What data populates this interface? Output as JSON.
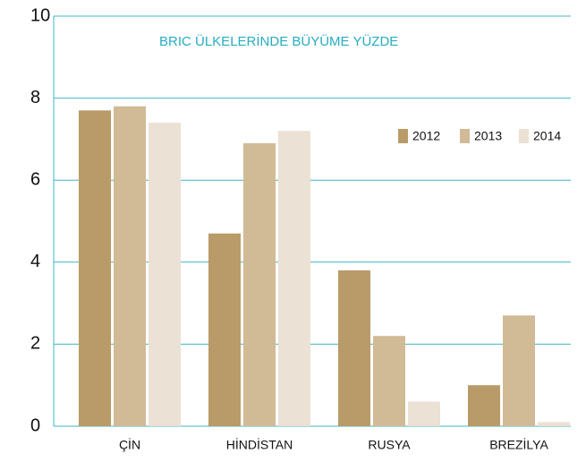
{
  "chart_data": {
    "type": "bar",
    "title": "BRIC ÜLKELERİNDE BÜYÜME YÜZDE",
    "categories": [
      "ÇİN",
      "HİNDİSTAN",
      "RUSYA",
      "BREZİLYA"
    ],
    "series": [
      {
        "name": "2012",
        "color": "#b99b69",
        "values": [
          7.7,
          4.7,
          3.8,
          1.0
        ]
      },
      {
        "name": "2013",
        "color": "#d1ba96",
        "values": [
          7.8,
          6.9,
          2.2,
          2.7
        ]
      },
      {
        "name": "2014",
        "color": "#ebe1d4",
        "values": [
          7.4,
          7.2,
          0.6,
          0.1
        ]
      }
    ],
    "ylim": [
      0,
      10
    ],
    "yticks": [
      0,
      2,
      4,
      6,
      8,
      10
    ],
    "grid": true,
    "grid_color": "#3bb8c6",
    "legend": "upper right"
  }
}
